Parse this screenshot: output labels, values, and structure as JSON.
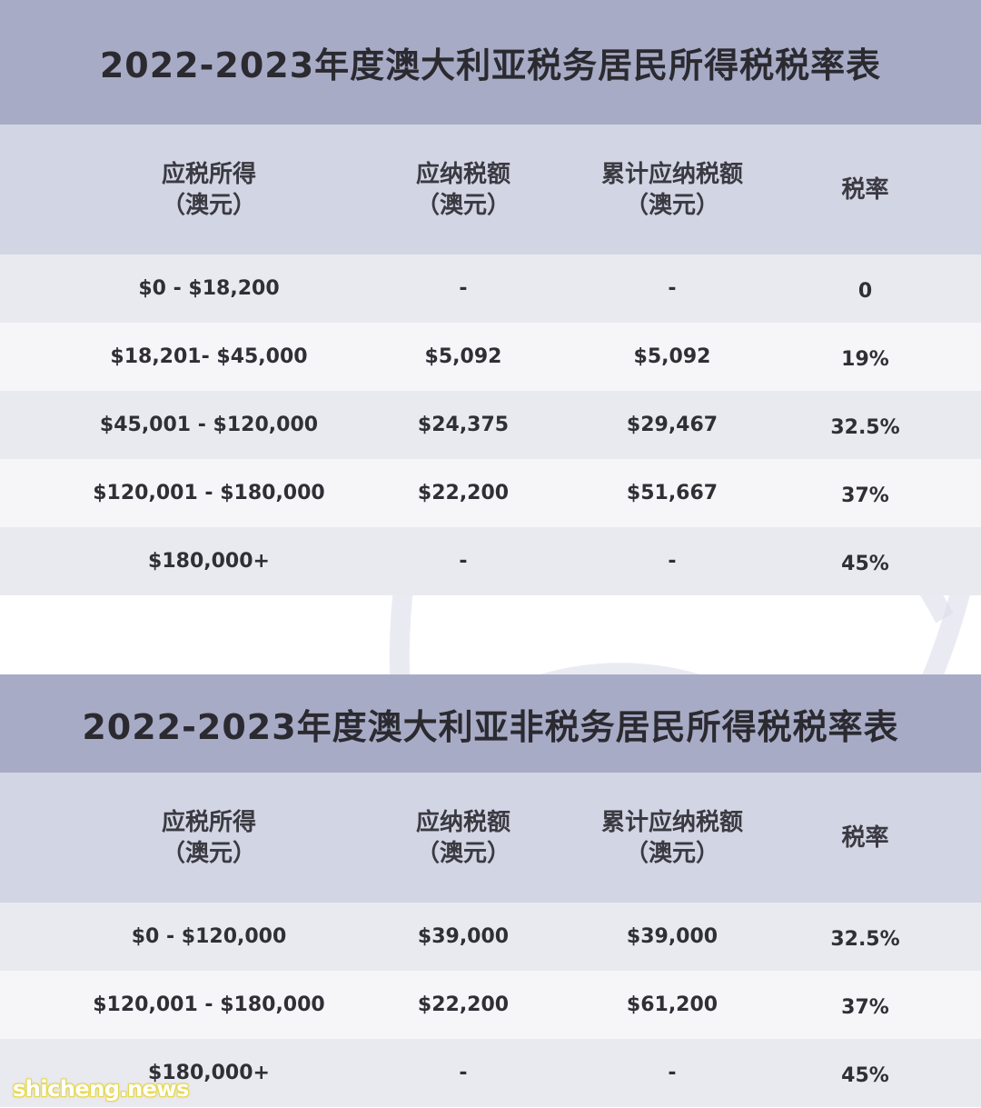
{
  "resident": {
    "title": "2022-2023年度澳大利亚税务居民所得税税率表",
    "headers": [
      {
        "line1": "应税所得",
        "line2": "（澳元）"
      },
      {
        "line1": "应纳税额",
        "line2": "（澳元）"
      },
      {
        "line1": "累计应纳税额",
        "line2": "（澳元）"
      },
      {
        "line1": "税率",
        "line2": ""
      }
    ],
    "rows": [
      {
        "income": "$0 - $18,200",
        "tax": "-",
        "cumulative": "-",
        "rate": "0"
      },
      {
        "income": "$18,201- $45,000",
        "tax": "$5,092",
        "cumulative": "$5,092",
        "rate": "19%"
      },
      {
        "income": "$45,001 - $120,000",
        "tax": "$24,375",
        "cumulative": "$29,467",
        "rate": "32.5%"
      },
      {
        "income": "$120,001 - $180,000",
        "tax": "$22,200",
        "cumulative": "$51,667",
        "rate": "37%"
      },
      {
        "income": "$180,000+",
        "tax": "-",
        "cumulative": "-",
        "rate": "45%"
      }
    ]
  },
  "non_resident": {
    "title": "2022-2023年度澳大利亚非税务居民所得税税率表",
    "headers": [
      {
        "line1": "应税所得",
        "line2": "（澳元）"
      },
      {
        "line1": "应纳税额",
        "line2": "（澳元）"
      },
      {
        "line1": "累计应纳税额",
        "line2": "（澳元）"
      },
      {
        "line1": "税率",
        "line2": ""
      }
    ],
    "rows": [
      {
        "income": "$0 - $120,000",
        "tax": "$39,000",
        "cumulative": "$39,000",
        "rate": "32.5%"
      },
      {
        "income": "$120,001 - $180,000",
        "tax": "$22,200",
        "cumulative": "$61,200",
        "rate": "37%"
      },
      {
        "income": "$180,000+",
        "tax": "-",
        "cumulative": "-",
        "rate": "45%"
      }
    ]
  },
  "watermark": "shicheng.news",
  "colors": {
    "title_bar": "#a8abc6",
    "header_row": "#d2d5e3",
    "row_odd": "#e9eaf0",
    "row_even": "#f6f6f9"
  }
}
